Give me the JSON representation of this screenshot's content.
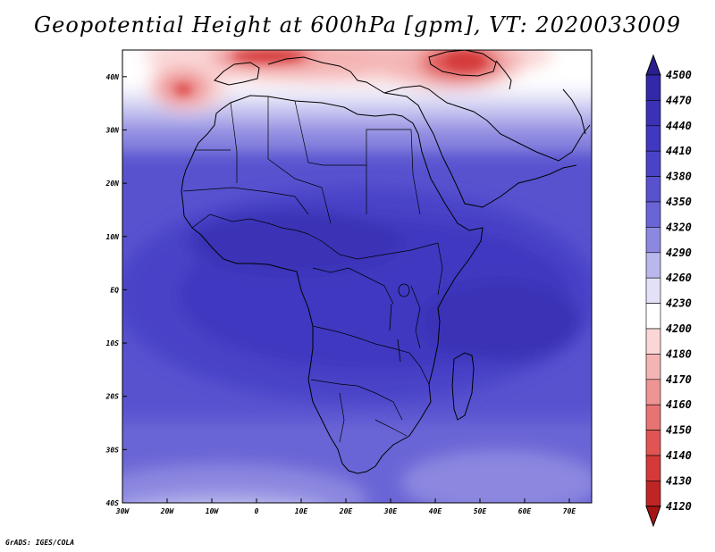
{
  "title": "Geopotential Height at 600hPa [gpm], VT: 2020033009",
  "credit": "GrADS: IGES/COLA",
  "map": {
    "lon_range": [
      -30,
      75
    ],
    "lat_range": [
      -40,
      45
    ],
    "lon_ticks": [
      {
        "value": -30,
        "label": "30W"
      },
      {
        "value": -20,
        "label": "20W"
      },
      {
        "value": -10,
        "label": "10W"
      },
      {
        "value": 0,
        "label": "0"
      },
      {
        "value": 10,
        "label": "10E"
      },
      {
        "value": 20,
        "label": "20E"
      },
      {
        "value": 30,
        "label": "30E"
      },
      {
        "value": 40,
        "label": "40E"
      },
      {
        "value": 50,
        "label": "50E"
      },
      {
        "value": 60,
        "label": "60E"
      },
      {
        "value": 70,
        "label": "70E"
      }
    ],
    "lat_ticks": [
      {
        "value": 40,
        "label": "40N"
      },
      {
        "value": 30,
        "label": "30N"
      },
      {
        "value": 20,
        "label": "20N"
      },
      {
        "value": 10,
        "label": "10N"
      },
      {
        "value": 0,
        "label": "EQ"
      },
      {
        "value": -10,
        "label": "10S"
      },
      {
        "value": -20,
        "label": "20S"
      },
      {
        "value": -30,
        "label": "30S"
      },
      {
        "value": -40,
        "label": "40S"
      }
    ]
  },
  "colorbar": {
    "labels": [
      "4500",
      "4470",
      "4440",
      "4410",
      "4380",
      "4350",
      "4320",
      "4290",
      "4260",
      "4230",
      "4200",
      "4180",
      "4170",
      "4160",
      "4150",
      "4140",
      "4130",
      "4120"
    ],
    "colors": [
      "#2a1f8f",
      "#3328a8",
      "#3a31b5",
      "#4038c0",
      "#4a43c8",
      "#5852cf",
      "#6a65d6",
      "#8c88e0",
      "#b9b7ec",
      "#e2e1f7",
      "#ffffff",
      "#fad6d6",
      "#f4b4b4",
      "#ee9494",
      "#e87373",
      "#e05454",
      "#d43a3a",
      "#c02525",
      "#a51515"
    ]
  },
  "chart_data": {
    "type": "heatmap",
    "title": "Geopotential Height at 600hPa [gpm], VT: 2020033009",
    "variable": "Geopotential Height at 600hPa",
    "units": "gpm",
    "valid_time": "2020033009",
    "lon_range": [
      -30,
      75
    ],
    "lat_range": [
      -40,
      45
    ],
    "color_levels": [
      4120,
      4130,
      4140,
      4150,
      4160,
      4170,
      4180,
      4200,
      4230,
      4260,
      4290,
      4320,
      4350,
      4380,
      4410,
      4440,
      4470,
      4500
    ],
    "features": [
      {
        "description": "low heights (red) over Mediterranean/Europe and Black Sea/Caucasus",
        "lat_range": [
          35,
          45
        ],
        "lon_range": [
          -10,
          55
        ],
        "min_approx": 4140
      },
      {
        "description": "closed low west of Iberia",
        "lon": -22,
        "lat": 37,
        "min_approx": 4150
      },
      {
        "description": "high heights (dark blue) over tropical Africa and Indian Ocean",
        "lat_range": [
          -20,
          15
        ],
        "max_approx": 4440
      },
      {
        "description": "lower heights toward southern boundary",
        "lat": -38,
        "approx": 4290
      }
    ]
  }
}
